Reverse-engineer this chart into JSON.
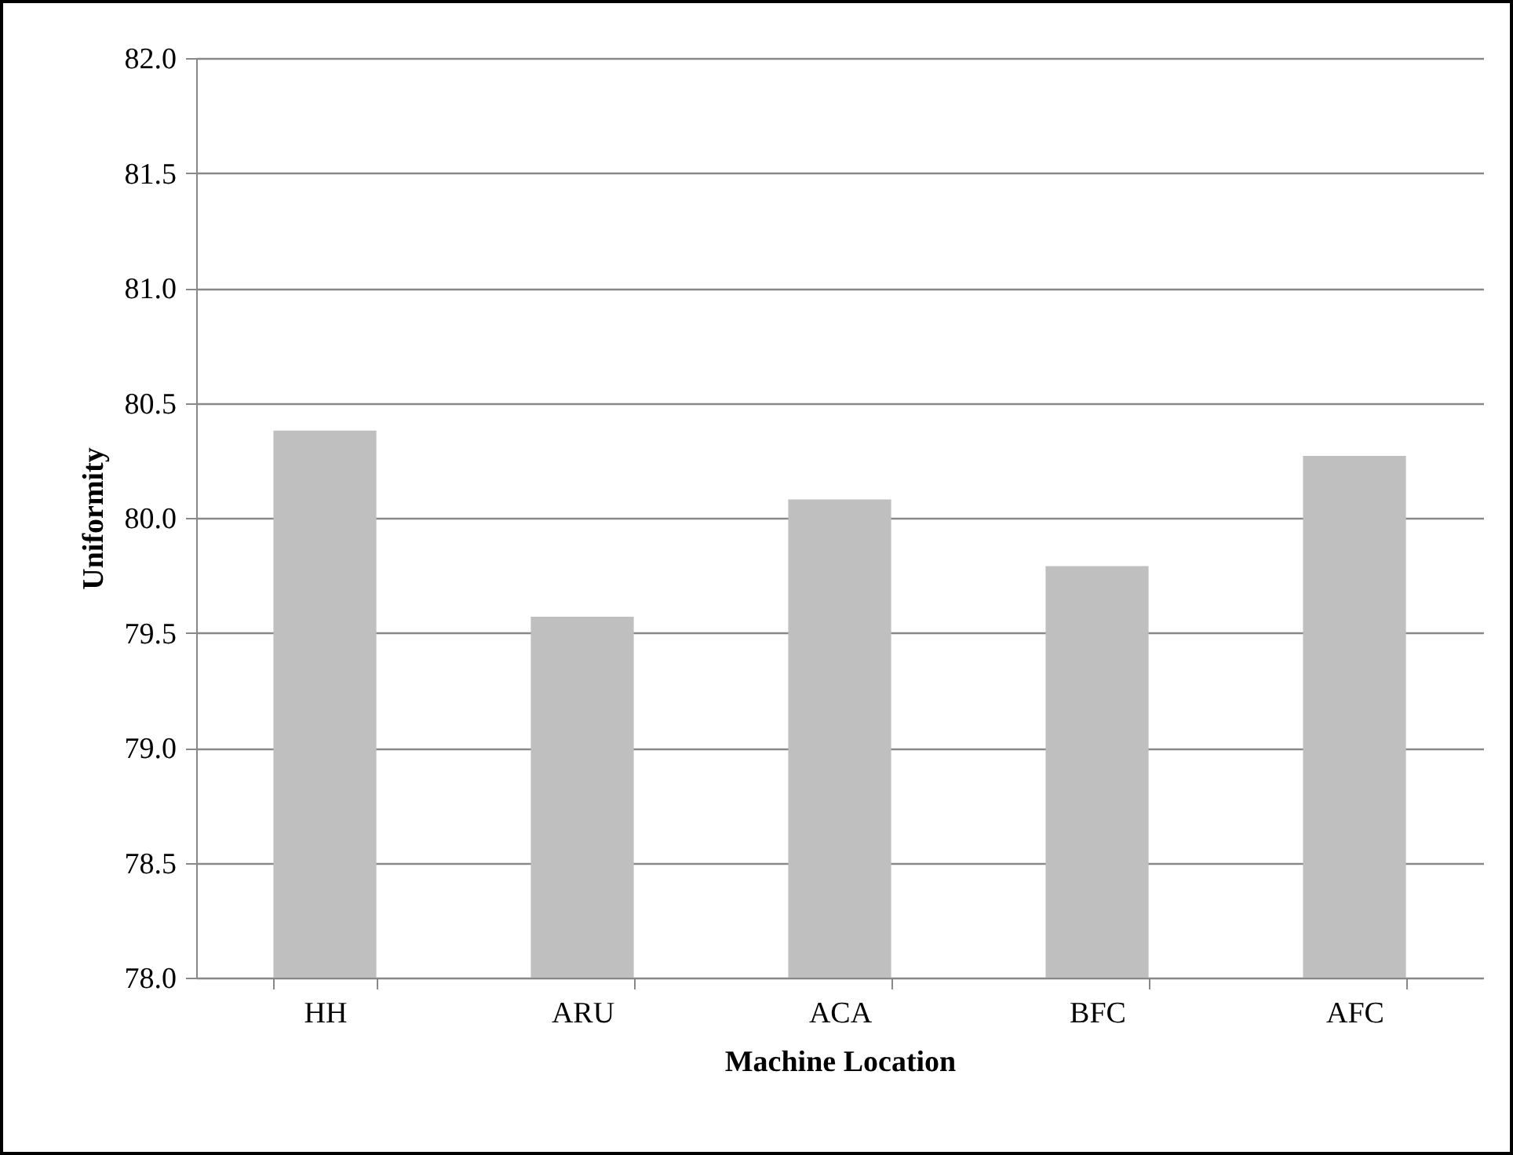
{
  "chart_data": {
    "type": "bar",
    "xlabel": "Machine Location",
    "ylabel": "Uniformity",
    "categories": [
      "HH",
      "ARU",
      "ACA",
      "BFC",
      "AFC"
    ],
    "values": [
      80.38,
      79.57,
      80.08,
      79.79,
      80.27
    ],
    "color": "#bfbfbf",
    "ylim": [
      78.0,
      82.0
    ],
    "yticks": [
      {
        "value": 78,
        "label": "78.0"
      },
      {
        "value": 78.5,
        "label": "78.5"
      },
      {
        "value": 79,
        "label": "79.0"
      },
      {
        "value": 79.5,
        "label": "79.5"
      },
      {
        "value": 80,
        "label": "80.0"
      },
      {
        "value": 80.5,
        "label": "80.5"
      },
      {
        "value": 81,
        "label": "81.0"
      },
      {
        "value": 81.5,
        "label": "81.5"
      },
      {
        "value": 82,
        "label": "82.0"
      }
    ],
    "grid": "y"
  }
}
